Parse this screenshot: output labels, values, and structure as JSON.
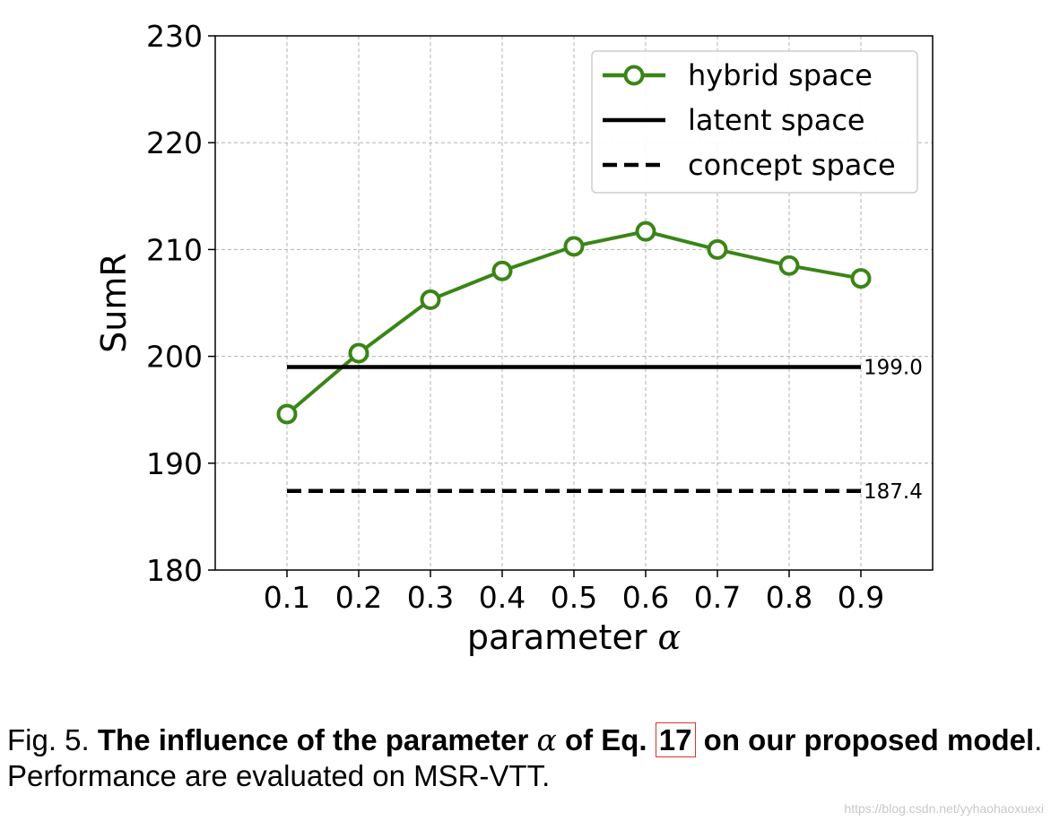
{
  "chart_data": {
    "type": "line",
    "xlabel": "parameter",
    "xlabel_symbol": "α",
    "ylabel": "SumR",
    "x": [
      0.1,
      0.2,
      0.3,
      0.4,
      0.5,
      0.6,
      0.7,
      0.8,
      0.9
    ],
    "x_tick_labels": [
      "0.1",
      "0.2",
      "0.3",
      "0.4",
      "0.5",
      "0.6",
      "0.7",
      "0.8",
      "0.9"
    ],
    "xlim": [
      0.0,
      1.0
    ],
    "ylim": [
      180,
      230
    ],
    "y_ticks": [
      180,
      190,
      200,
      210,
      220,
      230
    ],
    "grid": true,
    "legend_position": "top-right",
    "series": [
      {
        "name": "hybrid space",
        "style": "solid-marker",
        "color": "#3a8516",
        "values": [
          194.6,
          200.3,
          205.3,
          208.0,
          210.3,
          211.7,
          210.0,
          208.5,
          207.3
        ]
      },
      {
        "name": "latent space",
        "style": "solid",
        "color": "#000000",
        "constant": 199.0,
        "x_range": [
          0.1,
          0.9
        ],
        "label": "199.0"
      },
      {
        "name": "concept space",
        "style": "dashed",
        "color": "#000000",
        "constant": 187.4,
        "x_range": [
          0.1,
          0.9
        ],
        "label": "187.4"
      }
    ]
  },
  "caption": {
    "fig_label": "Fig. 5.",
    "bold_part1": "The influence of the parameter",
    "alpha": "α",
    "bold_part2": "of Eq.",
    "eq_ref": "17",
    "bold_part3": "on our proposed model",
    "rest": ". Performance are evaluated on MSR-VTT."
  },
  "watermark": "https://blog.csdn.net/yyhaohaoxuexi"
}
